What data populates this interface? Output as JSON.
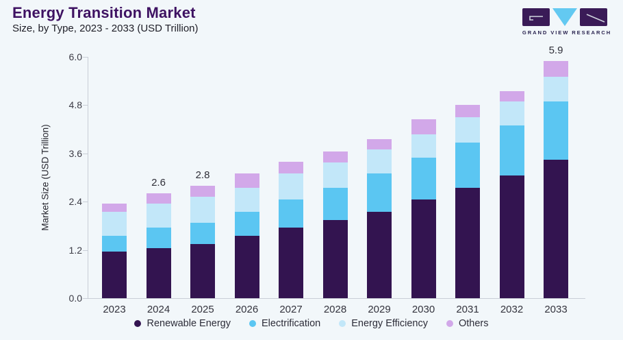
{
  "header": {
    "title": "Energy Transition Market",
    "subtitle": "Size, by Type, 2023 - 2033 (USD Trillion)"
  },
  "logo": {
    "text": "GRAND VIEW RESEARCH",
    "purple": "#3a1b57",
    "blue": "#63c9f1"
  },
  "chart_data": {
    "type": "bar",
    "stacked": true,
    "title": "Energy Transition Market",
    "ylabel": "Market Size (USD Trillion)",
    "ylim": [
      0,
      6.0
    ],
    "yticks": [
      0.0,
      1.2,
      2.4,
      3.6,
      4.8,
      6.0
    ],
    "grid": false,
    "legend_position": "bottom",
    "categories": [
      "2023",
      "2024",
      "2025",
      "2026",
      "2027",
      "2028",
      "2029",
      "2030",
      "2031",
      "2032",
      "2033"
    ],
    "series": [
      {
        "name": "Renewable Energy",
        "color": "#331450",
        "values": [
          1.15,
          1.25,
          1.35,
          1.55,
          1.75,
          1.95,
          2.15,
          2.45,
          2.75,
          3.05,
          3.45
        ]
      },
      {
        "name": "Electrification",
        "color": "#5bc6f2",
        "values": [
          0.4,
          0.5,
          0.52,
          0.6,
          0.7,
          0.8,
          0.95,
          1.05,
          1.12,
          1.25,
          1.45
        ]
      },
      {
        "name": "Energy Efficiency",
        "color": "#c2e7f9",
        "values": [
          0.6,
          0.6,
          0.65,
          0.6,
          0.65,
          0.62,
          0.6,
          0.58,
          0.63,
          0.6,
          0.6
        ]
      },
      {
        "name": "Others",
        "color": "#d2a8e9",
        "values": [
          0.2,
          0.25,
          0.28,
          0.35,
          0.3,
          0.28,
          0.25,
          0.37,
          0.3,
          0.25,
          0.4
        ]
      }
    ],
    "total_labels": {
      "2024": "2.6",
      "2025": "2.8",
      "2033": "5.9"
    }
  }
}
